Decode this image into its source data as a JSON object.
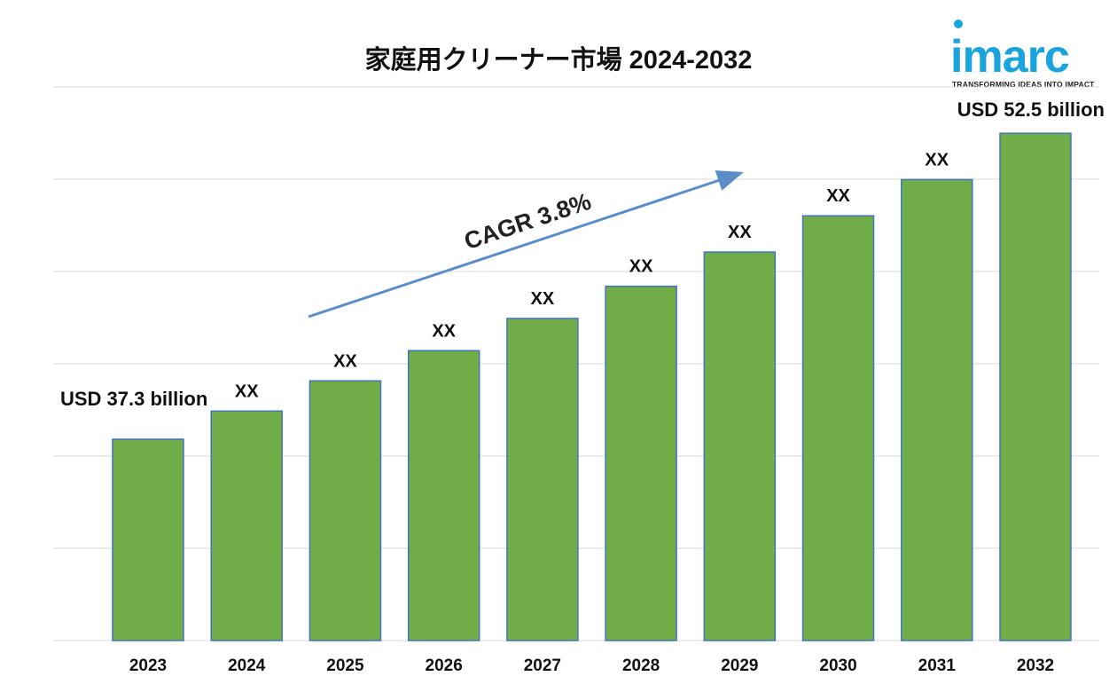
{
  "chart_data": {
    "type": "bar",
    "title": "家庭用クリーナー市場 2024-2032",
    "categories": [
      "2023",
      "2024",
      "2025",
      "2026",
      "2027",
      "2028",
      "2029",
      "2030",
      "2031",
      "2032"
    ],
    "values": [
      37.3,
      38.7,
      40.2,
      41.7,
      43.3,
      44.9,
      46.6,
      48.4,
      50.2,
      52.5
    ],
    "bar_labels": [
      "USD 37.3 billion",
      "XX",
      "XX",
      "XX",
      "XX",
      "XX",
      "XX",
      "XX",
      "XX",
      "USD 52.5 billion"
    ],
    "annotation": "CAGR 3.8%",
    "ylim": [
      27.3,
      54.8
    ],
    "grid": true,
    "bar_color": "#70ad47",
    "bar_edge_color": "#4472c4",
    "arrow_color": "#5b8ec9"
  },
  "logo": {
    "word": "imarc",
    "tagline": "TRANSFORMING IDEAS INTO IMPACT"
  }
}
